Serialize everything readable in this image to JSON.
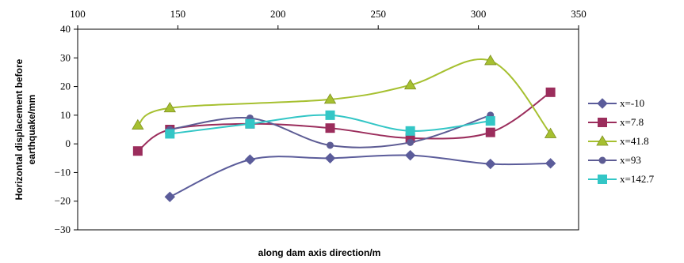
{
  "chart_data": {
    "type": "line",
    "smooth": true,
    "xlabel": "along dam axis direction/m",
    "ylabel_lines": [
      "Horizontal displacement before",
      "earthquake/mm"
    ],
    "x_axis_position": "top",
    "xlim": [
      100,
      350
    ],
    "ylim": [
      -30,
      40
    ],
    "xticks": [
      "100",
      "150",
      "200",
      "250",
      "300",
      "350"
    ],
    "yticks": [
      "40",
      "30",
      "20",
      "10",
      "0",
      "−10",
      "−20",
      "−30"
    ],
    "grid": false,
    "legend_position": "right",
    "series": [
      {
        "name": "x=-10",
        "color": "#5b5c9a",
        "marker": "diamond",
        "points": [
          [
            146,
            -18.5
          ],
          [
            186,
            -5.5
          ],
          [
            226,
            -5
          ],
          [
            266,
            -4
          ],
          [
            306,
            -7
          ],
          [
            336,
            -6.8
          ]
        ]
      },
      {
        "name": "x=7.8",
        "color": "#9b2d5c",
        "marker": "square",
        "points": [
          [
            130,
            -2.5
          ],
          [
            146,
            5
          ],
          [
            186,
            7
          ],
          [
            226,
            5.5
          ],
          [
            266,
            2
          ],
          [
            306,
            4
          ],
          [
            336,
            18
          ]
        ]
      },
      {
        "name": "x=41.8",
        "color": "#a6c030",
        "marker": "triangle",
        "points": [
          [
            130,
            6.5
          ],
          [
            146,
            12.5
          ],
          [
            226,
            15.5
          ],
          [
            266,
            20.5
          ],
          [
            306,
            29
          ],
          [
            336,
            3.5
          ]
        ]
      },
      {
        "name": "x=93",
        "color": "#5d5c94",
        "marker": "circle",
        "points": [
          [
            146,
            5
          ],
          [
            186,
            9
          ],
          [
            226,
            -0.5
          ],
          [
            266,
            0.5
          ],
          [
            306,
            10
          ]
        ]
      },
      {
        "name": "x=142.7",
        "color": "#33c6c6",
        "marker": "square",
        "points": [
          [
            146,
            3.5
          ],
          [
            186,
            7
          ],
          [
            226,
            10
          ],
          [
            266,
            4.5
          ],
          [
            306,
            8
          ]
        ]
      }
    ]
  }
}
